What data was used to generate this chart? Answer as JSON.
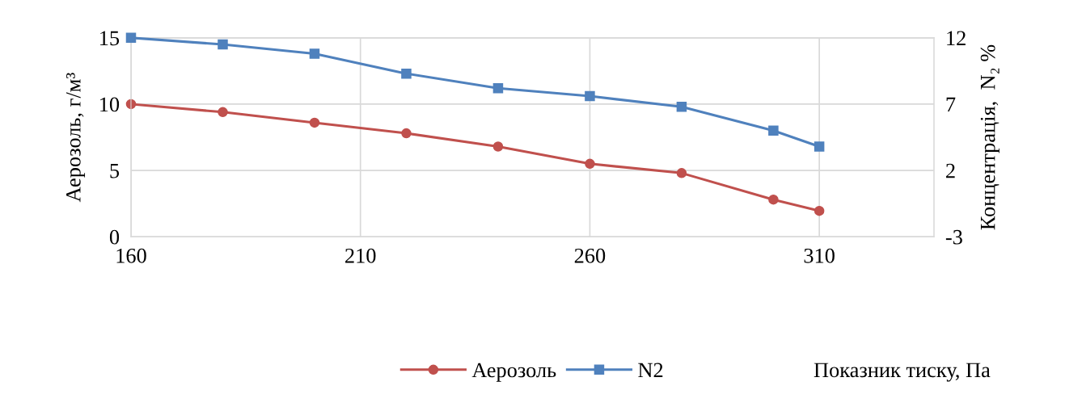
{
  "chart_data": {
    "type": "line",
    "xlabel": "Показник тиску, Па",
    "ylabel": "Аерозоль, г/м³",
    "y2label": "Концентрація,  N₂ %",
    "x": [
      160,
      180,
      200,
      220,
      240,
      260,
      280,
      300,
      310
    ],
    "series": [
      {
        "name": "Аерозоль",
        "color": "#c0504d",
        "marker": "circle",
        "values": [
          10.0,
          9.4,
          8.6,
          7.8,
          6.8,
          5.5,
          4.8,
          2.8,
          1.95
        ]
      },
      {
        "name": "N2",
        "color": "#4f81bd",
        "marker": "square",
        "axis": "y2",
        "values": [
          12.0,
          11.5,
          10.8,
          9.3,
          8.2,
          7.6,
          6.8,
          5.0,
          3.8
        ]
      }
    ],
    "xlim": [
      160,
      335
    ],
    "xticks": [
      160,
      210,
      260,
      310
    ],
    "ylim": [
      0,
      15
    ],
    "yticks": [
      0,
      5,
      10,
      15
    ],
    "y2lim": [
      -3,
      12
    ],
    "y2ticks": [
      -3,
      2,
      7,
      12
    ],
    "grid": true,
    "legend": "bottom",
    "line_style": "solid"
  }
}
